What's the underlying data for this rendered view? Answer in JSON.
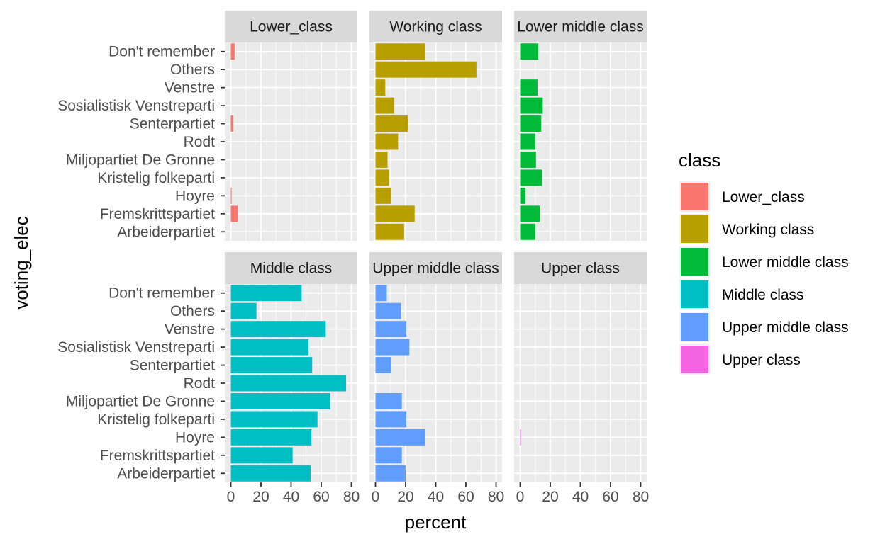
{
  "chart_data": {
    "type": "bar",
    "orientation": "horizontal",
    "facet_layout": "2 rows x 3 columns",
    "xlabel": "percent",
    "ylabel": "voting_elec",
    "xlim": [
      0,
      80
    ],
    "x_ticks": [
      0,
      20,
      40,
      60,
      80
    ],
    "categories": [
      "Don't remember",
      "Others",
      "Venstre",
      "Sosialistisk Venstreparti",
      "Senterpartiet",
      "Rodt",
      "Miljopartiet De Gronne",
      "Kristelig folkeparti",
      "Hoyre",
      "Fremskrittspartiet",
      "Arbeiderpartiet"
    ],
    "legend": {
      "title": "class",
      "position": "right",
      "entries": [
        {
          "label": "Lower_class",
          "color": "#F8766D"
        },
        {
          "label": "Working class",
          "color": "#B79F00"
        },
        {
          "label": "Lower middle class",
          "color": "#00BA38"
        },
        {
          "label": "Middle class",
          "color": "#00BFC4"
        },
        {
          "label": "Upper middle class",
          "color": "#619CFF"
        },
        {
          "label": "Upper class",
          "color": "#F564E3"
        }
      ]
    },
    "panels": [
      {
        "name": "Lower_class",
        "strip_label": "Lower_class",
        "color": "#F8766D",
        "values": [
          2.5,
          0,
          0,
          0,
          1.5,
          0,
          0,
          0,
          0.5,
          4.5,
          0
        ]
      },
      {
        "name": "Working class",
        "strip_label": "Working class",
        "color": "#B79F00",
        "values": [
          33,
          67,
          6.5,
          12.5,
          21.5,
          15,
          8,
          9,
          10.5,
          26,
          19
        ]
      },
      {
        "name": "Lower middle class",
        "strip_label": "Lower middle class",
        "color": "#00BA38",
        "values": [
          12,
          0,
          11.5,
          15,
          14,
          10,
          10.5,
          14.5,
          3.5,
          13,
          10
        ]
      },
      {
        "name": "Middle class",
        "strip_label": "Middle class",
        "color": "#00BFC4",
        "values": [
          47,
          17,
          63,
          51.5,
          54,
          76.5,
          66,
          57.5,
          53.5,
          41,
          53
        ]
      },
      {
        "name": "Upper middle class",
        "strip_label": "Upper middle class",
        "color": "#619CFF",
        "values": [
          7.5,
          17,
          20.5,
          22.5,
          10.5,
          0,
          17.5,
          20.5,
          33,
          17.5,
          20
        ]
      },
      {
        "name": "Upper class",
        "strip_label": "Upper class",
        "color": "#F564E3",
        "values": [
          0,
          0,
          0,
          0,
          0,
          0,
          0,
          0,
          0.5,
          0,
          0
        ]
      }
    ],
    "grid": true
  }
}
